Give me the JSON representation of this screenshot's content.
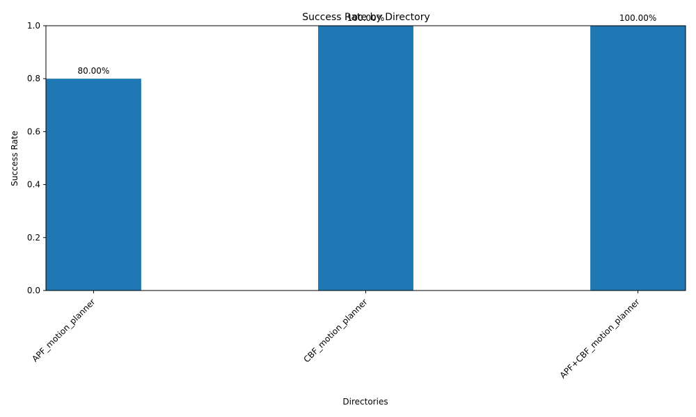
{
  "chart_data": {
    "type": "bar",
    "title": "Success Rate by Directory",
    "xlabel": "Directories",
    "ylabel": "Success Rate",
    "categories": [
      "APF_motion_planner",
      "CBF_motion_planner",
      "APF+CBF_motion_planner"
    ],
    "values": [
      0.8,
      1.0,
      1.0
    ],
    "data_labels": [
      "80.00%",
      "100.00%",
      "100.00%"
    ],
    "ylim": [
      0,
      1.0
    ],
    "yticks": [
      "0.0",
      "0.2",
      "0.4",
      "0.6",
      "0.8",
      "1.0"
    ],
    "grid": false,
    "legend": "none",
    "bar_color": "#1f77b4"
  }
}
